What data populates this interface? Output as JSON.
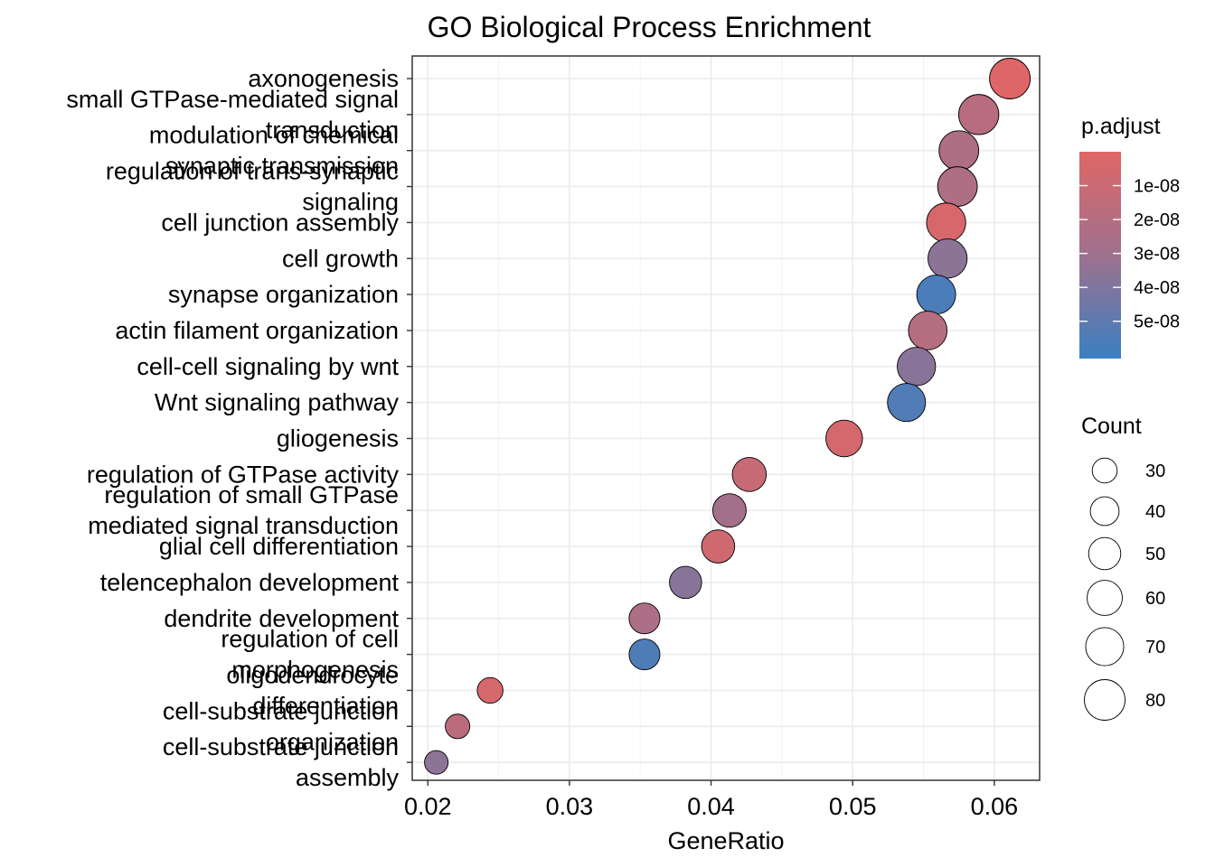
{
  "chart_data": {
    "type": "scatter",
    "title": "GO Biological Process Enrichment",
    "xlabel": "GeneRatio",
    "ylabel": "",
    "xlim": [
      0.0189,
      0.0632
    ],
    "x_ticks": [
      "0.02",
      "0.03",
      "0.04",
      "0.05",
      "0.06"
    ],
    "grid": true,
    "categories": [
      {
        "label_lines": [
          "axonogenesis"
        ],
        "gene_ratio": 0.0611,
        "count": 80,
        "p_adjust": 5e-10
      },
      {
        "label_lines": [
          "small GTPase-mediated signal",
          "transduction"
        ],
        "gene_ratio": 0.0589,
        "count": 78,
        "p_adjust": 1.9e-08
      },
      {
        "label_lines": [
          "modulation of chemical",
          "synaptic transmission"
        ],
        "gene_ratio": 0.0575,
        "count": 76,
        "p_adjust": 2.3e-08
      },
      {
        "label_lines": [
          "regulation of trans-synaptic",
          "signaling"
        ],
        "gene_ratio": 0.0574,
        "count": 76,
        "p_adjust": 2.3e-08
      },
      {
        "label_lines": [
          "cell junction assembly"
        ],
        "gene_ratio": 0.0566,
        "count": 74,
        "p_adjust": 4e-09
      },
      {
        "label_lines": [
          "cell growth"
        ],
        "gene_ratio": 0.0567,
        "count": 74,
        "p_adjust": 3.6e-08
      },
      {
        "label_lines": [
          "synapse organization"
        ],
        "gene_ratio": 0.0559,
        "count": 73,
        "p_adjust": 5.6e-08
      },
      {
        "label_lines": [
          "actin filament organization"
        ],
        "gene_ratio": 0.0553,
        "count": 72,
        "p_adjust": 2e-08
      },
      {
        "label_lines": [
          "cell-cell signaling by wnt"
        ],
        "gene_ratio": 0.0545,
        "count": 71,
        "p_adjust": 3.7e-08
      },
      {
        "label_lines": [
          "Wnt signaling pathway"
        ],
        "gene_ratio": 0.0538,
        "count": 70,
        "p_adjust": 5.4e-08
      },
      {
        "label_lines": [
          "gliogenesis"
        ],
        "gene_ratio": 0.0494,
        "count": 65,
        "p_adjust": 5e-09
      },
      {
        "label_lines": [
          "regulation of GTPase activity"
        ],
        "gene_ratio": 0.0427,
        "count": 56,
        "p_adjust": 1.2e-08
      },
      {
        "label_lines": [
          "regulation of small GTPase",
          "mediated signal transduction"
        ],
        "gene_ratio": 0.0413,
        "count": 54,
        "p_adjust": 2.8e-08
      },
      {
        "label_lines": [
          "glial cell differentiation"
        ],
        "gene_ratio": 0.0405,
        "count": 53,
        "p_adjust": 8e-09
      },
      {
        "label_lines": [
          "telencephalon development"
        ],
        "gene_ratio": 0.0382,
        "count": 50,
        "p_adjust": 3.7e-08
      },
      {
        "label_lines": [
          "dendrite development"
        ],
        "gene_ratio": 0.0353,
        "count": 46,
        "p_adjust": 2.4e-08
      },
      {
        "label_lines": [
          "regulation of cell",
          "morphogenesis"
        ],
        "gene_ratio": 0.0353,
        "count": 46,
        "p_adjust": 5.5e-08
      },
      {
        "label_lines": [
          "oligodendrocyte",
          "differentiation"
        ],
        "gene_ratio": 0.0244,
        "count": 32,
        "p_adjust": 5e-09
      },
      {
        "label_lines": [
          "cell-substrate junction",
          "organization"
        ],
        "gene_ratio": 0.0221,
        "count": 29,
        "p_adjust": 1.7e-08
      },
      {
        "label_lines": [
          "cell-substrate junction",
          "assembly"
        ],
        "gene_ratio": 0.0206,
        "count": 27,
        "p_adjust": 3.6e-08
      }
    ],
    "color_legend": {
      "title": "p.adjust",
      "low_color": "#E06666",
      "high_color": "#3A7FC1",
      "domain": [
        0,
        6.1e-08
      ],
      "ticks": [
        {
          "value": 1e-08,
          "label": "1e-08"
        },
        {
          "value": 2e-08,
          "label": "2e-08"
        },
        {
          "value": 3e-08,
          "label": "3e-08"
        },
        {
          "value": 4e-08,
          "label": "4e-08"
        },
        {
          "value": 5e-08,
          "label": "5e-08"
        }
      ]
    },
    "size_legend": {
      "title": "Count",
      "entries": [
        {
          "value": 30,
          "label": "30"
        },
        {
          "value": 40,
          "label": "40"
        },
        {
          "value": 50,
          "label": "50"
        },
        {
          "value": 60,
          "label": "60"
        },
        {
          "value": 70,
          "label": "70"
        },
        {
          "value": 80,
          "label": "80"
        }
      ]
    }
  }
}
